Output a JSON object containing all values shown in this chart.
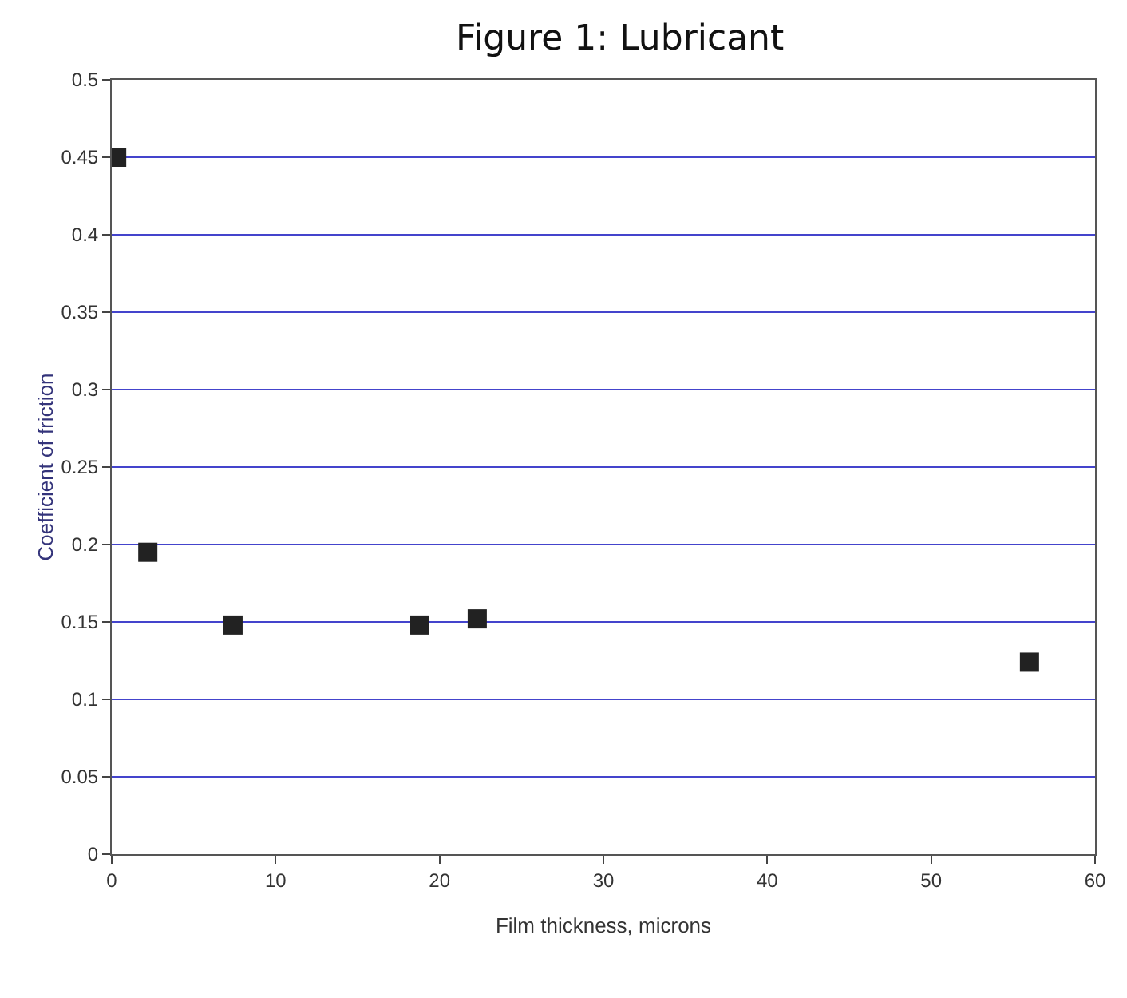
{
  "chart_data": {
    "type": "scatter",
    "title": "Figure 1: Lubricant",
    "xlabel": "Film thickness, microns",
    "ylabel": "Coefficient of friction",
    "x": [
      0.3,
      2.2,
      7.4,
      18.8,
      22.3,
      56
    ],
    "series": [
      {
        "color": "#222222",
        "values": [
          0.45,
          0.195,
          0.148,
          0.148,
          0.152,
          0.124
        ]
      }
    ],
    "xlim": [
      0,
      60
    ],
    "xticks": [
      0,
      10,
      20,
      30,
      40,
      50,
      60
    ],
    "ylim": [
      0,
      0.5
    ],
    "yticks": [
      0,
      0.05,
      0.1,
      0.15,
      0.2,
      0.25,
      0.3,
      0.35,
      0.4,
      0.45,
      0.5
    ],
    "grid": "y",
    "marker": "square"
  }
}
